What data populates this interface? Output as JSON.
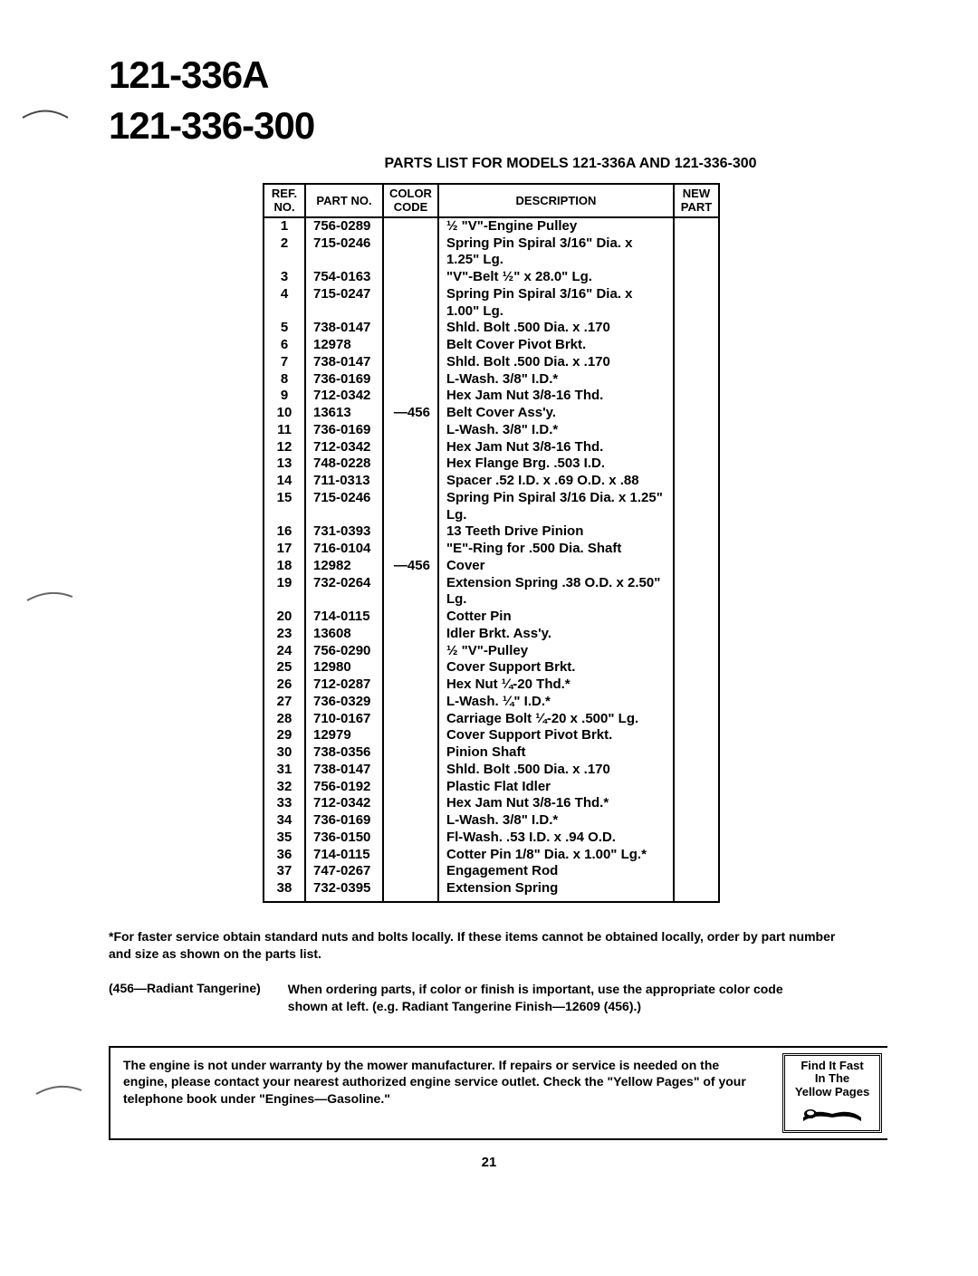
{
  "heading": {
    "model1": "121-336A",
    "model2": "121-336-300"
  },
  "subtitle": "PARTS LIST FOR MODELS 121-336A AND 121-336-300",
  "table": {
    "headers": {
      "ref": "REF.\nNO.",
      "partno": "PART\nNO.",
      "color": "COLOR\nCODE",
      "desc": "DESCRIPTION",
      "newpart": "NEW\nPART"
    },
    "rows": [
      {
        "ref": "1",
        "part": "756-0289",
        "color": "",
        "desc": "½ \"V\"-Engine Pulley"
      },
      {
        "ref": "2",
        "part": "715-0246",
        "color": "",
        "desc": "Spring Pin Spiral 3/16\" Dia. x 1.25\" Lg."
      },
      {
        "ref": "3",
        "part": "754-0163",
        "color": "",
        "desc": "\"V\"-Belt ½\" x 28.0\" Lg."
      },
      {
        "ref": "4",
        "part": "715-0247",
        "color": "",
        "desc": "Spring Pin Spiral 3/16\" Dia. x 1.00\" Lg."
      },
      {
        "ref": "5",
        "part": "738-0147",
        "color": "",
        "desc": "Shld. Bolt .500 Dia. x .170"
      },
      {
        "ref": "6",
        "part": "12978",
        "color": "",
        "desc": "Belt Cover Pivot Brkt."
      },
      {
        "ref": "7",
        "part": "738-0147",
        "color": "",
        "desc": "Shld. Bolt .500 Dia. x .170"
      },
      {
        "ref": "8",
        "part": "736-0169",
        "color": "",
        "desc": "L-Wash. 3/8\" I.D.*"
      },
      {
        "ref": "9",
        "part": "712-0342",
        "color": "",
        "desc": "Hex Jam Nut 3/8-16 Thd."
      },
      {
        "ref": "10",
        "part": "13613",
        "color": "—456",
        "desc": "Belt Cover Ass'y."
      },
      {
        "ref": "11",
        "part": "736-0169",
        "color": "",
        "desc": "L-Wash. 3/8\" I.D.*"
      },
      {
        "ref": "12",
        "part": "712-0342",
        "color": "",
        "desc": "Hex Jam Nut 3/8-16 Thd."
      },
      {
        "ref": "13",
        "part": "748-0228",
        "color": "",
        "desc": "Hex Flange Brg. .503 I.D."
      },
      {
        "ref": "14",
        "part": "711-0313",
        "color": "",
        "desc": "Spacer .52 I.D. x .69 O.D. x .88"
      },
      {
        "ref": "15",
        "part": "715-0246",
        "color": "",
        "desc": "Spring Pin Spiral 3/16 Dia. x 1.25\" Lg."
      },
      {
        "ref": "16",
        "part": "731-0393",
        "color": "",
        "desc": "13 Teeth Drive Pinion"
      },
      {
        "ref": "17",
        "part": "716-0104",
        "color": "",
        "desc": "\"E\"-Ring for .500 Dia. Shaft"
      },
      {
        "ref": "18",
        "part": "12982",
        "color": "—456",
        "desc": "Cover"
      },
      {
        "ref": "19",
        "part": "732-0264",
        "color": "",
        "desc": "Extension Spring .38 O.D. x 2.50\" Lg."
      },
      {
        "ref": "20",
        "part": "714-0115",
        "color": "",
        "desc": "Cotter Pin"
      },
      {
        "ref": "23",
        "part": "13608",
        "color": "",
        "desc": "Idler Brkt. Ass'y."
      },
      {
        "ref": "24",
        "part": "756-0290",
        "color": "",
        "desc": "½ \"V\"-Pulley"
      },
      {
        "ref": "25",
        "part": "12980",
        "color": "",
        "desc": "Cover Support Brkt."
      },
      {
        "ref": "26",
        "part": "712-0287",
        "color": "",
        "desc": "Hex Nut ¼-20 Thd.*"
      },
      {
        "ref": "27",
        "part": "736-0329",
        "color": "",
        "desc": "L-Wash. ¼\" I.D.*"
      },
      {
        "ref": "28",
        "part": "710-0167",
        "color": "",
        "desc": "Carriage Bolt ¼-20 x .500\" Lg."
      },
      {
        "ref": "29",
        "part": "12979",
        "color": "",
        "desc": "Cover Support Pivot Brkt."
      },
      {
        "ref": "30",
        "part": "738-0356",
        "color": "",
        "desc": "Pinion Shaft"
      },
      {
        "ref": "31",
        "part": "738-0147",
        "color": "",
        "desc": "Shld. Bolt .500 Dia. x .170"
      },
      {
        "ref": "32",
        "part": "756-0192",
        "color": "",
        "desc": "Plastic Flat Idler"
      },
      {
        "ref": "33",
        "part": "712-0342",
        "color": "",
        "desc": "Hex Jam Nut 3/8-16 Thd.*"
      },
      {
        "ref": "34",
        "part": "736-0169",
        "color": "",
        "desc": "L-Wash. 3/8\" I.D.*"
      },
      {
        "ref": "35",
        "part": "736-0150",
        "color": "",
        "desc": "Fl-Wash. .53 I.D. x .94 O.D."
      },
      {
        "ref": "36",
        "part": "714-0115",
        "color": "",
        "desc": "Cotter Pin 1/8\" Dia. x 1.00\" Lg.*"
      },
      {
        "ref": "37",
        "part": "747-0267",
        "color": "",
        "desc": "Engagement Rod"
      },
      {
        "ref": "38",
        "part": "732-0395",
        "color": "",
        "desc": "Extension Spring"
      }
    ]
  },
  "footnote": "*For faster service obtain standard nuts and bolts locally. If these items cannot be obtained locally, order by part number and size as shown on the parts list.",
  "colornote": {
    "label": "(456—Radiant Tangerine)",
    "text": "When ordering parts, if color or finish is important, use the appropriate color code shown at left. (e.g. Radiant Tangerine Finish—12609 (456).)"
  },
  "warranty": "The engine is not under warranty by the mower manufacturer. If repairs or service is needed on the engine, please contact your nearest authorized engine service outlet. Check the \"Yellow Pages\" of your telephone book under \"Engines—Gasoline.\"",
  "find_fast": {
    "line1": "Find It Fast",
    "line2": "In The",
    "line3": "Yellow Pages"
  },
  "page_number": "21"
}
